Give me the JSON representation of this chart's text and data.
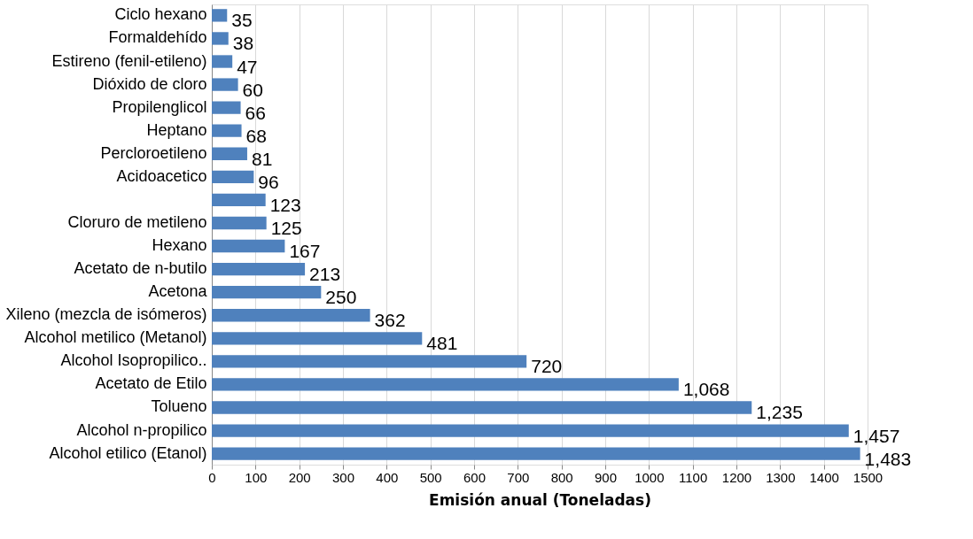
{
  "chart_data": {
    "type": "bar",
    "orientation": "horizontal",
    "xlabel": "Emisión anual (Toneladas)",
    "categories": [
      "Ciclo hexano",
      "Formaldehído",
      "Estireno (fenil-etileno)",
      "Dióxido de cloro",
      "Propilenglicol",
      "Heptano",
      "Percloroetileno",
      "Acidoacetico",
      null,
      "Cloruro de metileno",
      "Hexano",
      "Acetato de n-butilo",
      "Acetona",
      "Xileno (mezcla de isómeros)",
      "Alcohol metilico (Metanol)",
      "Alcohol Isopropilico..",
      "Acetato de Etilo",
      "Tolueno",
      "Alcohol n-propilico",
      "Alcohol etilico (Etanol)"
    ],
    "values": [
      35,
      38,
      47,
      60,
      66,
      68,
      81,
      96,
      123,
      125,
      167,
      213,
      250,
      362,
      481,
      720,
      1068,
      1235,
      1457,
      1483
    ],
    "value_labels": [
      "35",
      "38",
      "47",
      "60",
      "66",
      "68",
      "81",
      "96",
      "123",
      "125",
      "167",
      "213",
      "250",
      "362",
      "481",
      "720",
      "1,068",
      "1,235",
      "1,457",
      "1,483"
    ],
    "color": "#4f81bd",
    "xlim": [
      0,
      1500
    ],
    "xticks": [
      0,
      100,
      200,
      300,
      400,
      500,
      600,
      700,
      800,
      900,
      1000,
      1100,
      1200,
      1300,
      1400,
      1500
    ],
    "grid": "x"
  }
}
